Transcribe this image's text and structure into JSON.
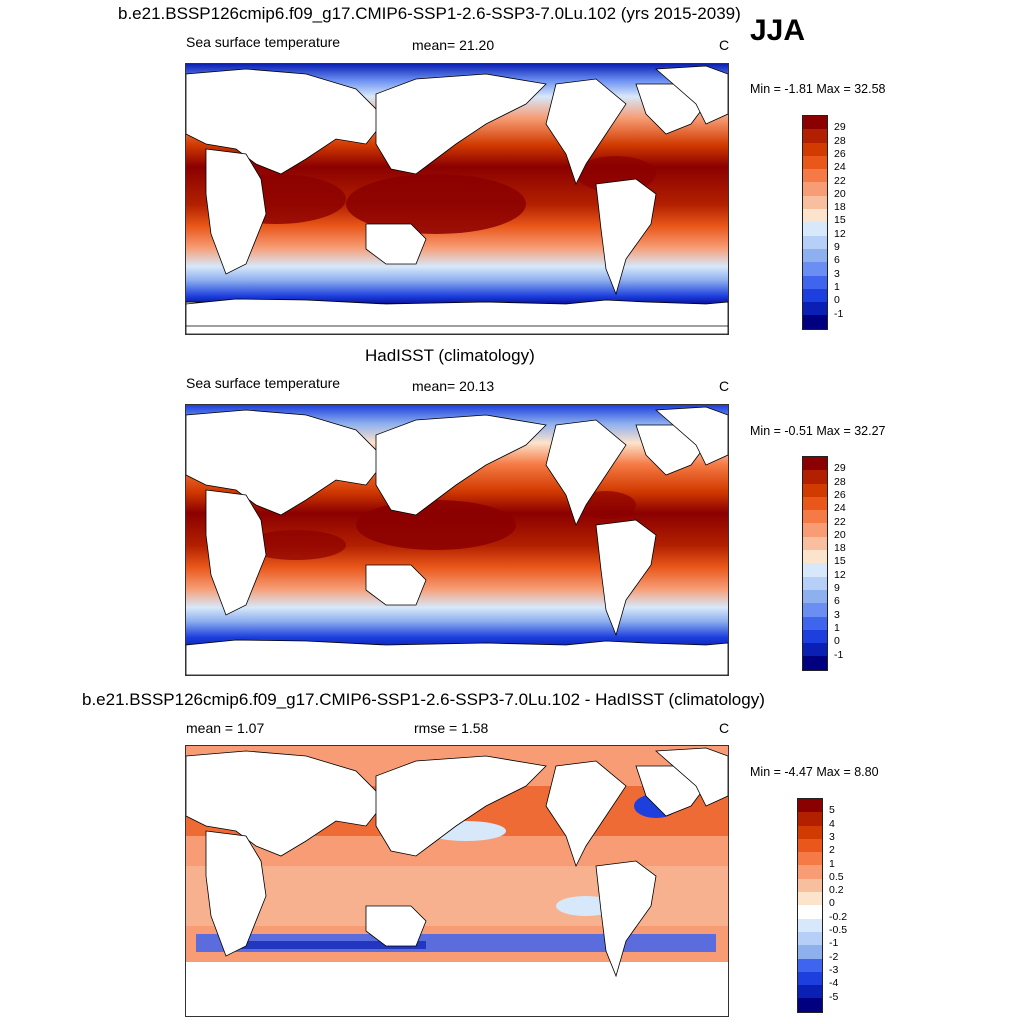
{
  "season": "JJA",
  "panels": [
    {
      "title": "b.e21.BSSP126cmip6.f09_g17.CMIP6-SSP1-2.6-SSP3-7.0Lu.102 (yrs 2015-2039)",
      "left_label": "Sea surface temperature",
      "center_label": "mean=  21.20",
      "units": "C",
      "minmax": "Min =  -1.81 Max =  32.58",
      "colorbar": {
        "labels": [
          "29",
          "28",
          "26",
          "24",
          "22",
          "20",
          "18",
          "15",
          "12",
          "9",
          "6",
          "3",
          "1",
          "0",
          "-1"
        ],
        "colors": [
          "#8b0000",
          "#b22000",
          "#d13a00",
          "#e9571a",
          "#f57a45",
          "#f79c75",
          "#f8bf9f",
          "#fce3cc",
          "#d7e8fa",
          "#b5cff6",
          "#8fb0ef",
          "#6a8ef2",
          "#3f64ee",
          "#1d3fde",
          "#0a20b4",
          "#000080"
        ]
      }
    },
    {
      "title": "HadISST (climatology)",
      "left_label": "Sea surface temperature",
      "center_label": "mean=  20.13",
      "units": "C",
      "minmax": "Min =  -0.51 Max =  32.27",
      "colorbar": {
        "labels": [
          "29",
          "28",
          "26",
          "24",
          "22",
          "20",
          "18",
          "15",
          "12",
          "9",
          "6",
          "3",
          "1",
          "0",
          "-1"
        ],
        "colors": [
          "#8b0000",
          "#b22000",
          "#d13a00",
          "#e9571a",
          "#f57a45",
          "#f79c75",
          "#f8bf9f",
          "#fce3cc",
          "#d7e8fa",
          "#b5cff6",
          "#8fb0ef",
          "#6a8ef2",
          "#3f64ee",
          "#1d3fde",
          "#0a20b4",
          "#000080"
        ]
      }
    },
    {
      "title": "b.e21.BSSP126cmip6.f09_g17.CMIP6-SSP1-2.6-SSP3-7.0Lu.102 - HadISST (climatology)",
      "left_label": "mean =   1.07",
      "center_label": "rmse =   1.58",
      "units": "C",
      "minmax": "Min =  -4.47 Max =   8.80",
      "colorbar": {
        "labels": [
          "5",
          "4",
          "3",
          "2",
          "1",
          "0.5",
          "0.2",
          "0",
          "-0.2",
          "-0.5",
          "-1",
          "-2",
          "-3",
          "-4",
          "-5"
        ],
        "colors": [
          "#8b0000",
          "#b22000",
          "#d13a00",
          "#e9571a",
          "#f57a45",
          "#f79c75",
          "#f8bf9f",
          "#fce3cc",
          "#ffffff",
          "#d7e8fa",
          "#b5cff6",
          "#8fb0ef",
          "#3f64ee",
          "#1d3fde",
          "#0a20b4",
          "#000080"
        ]
      }
    }
  ]
}
